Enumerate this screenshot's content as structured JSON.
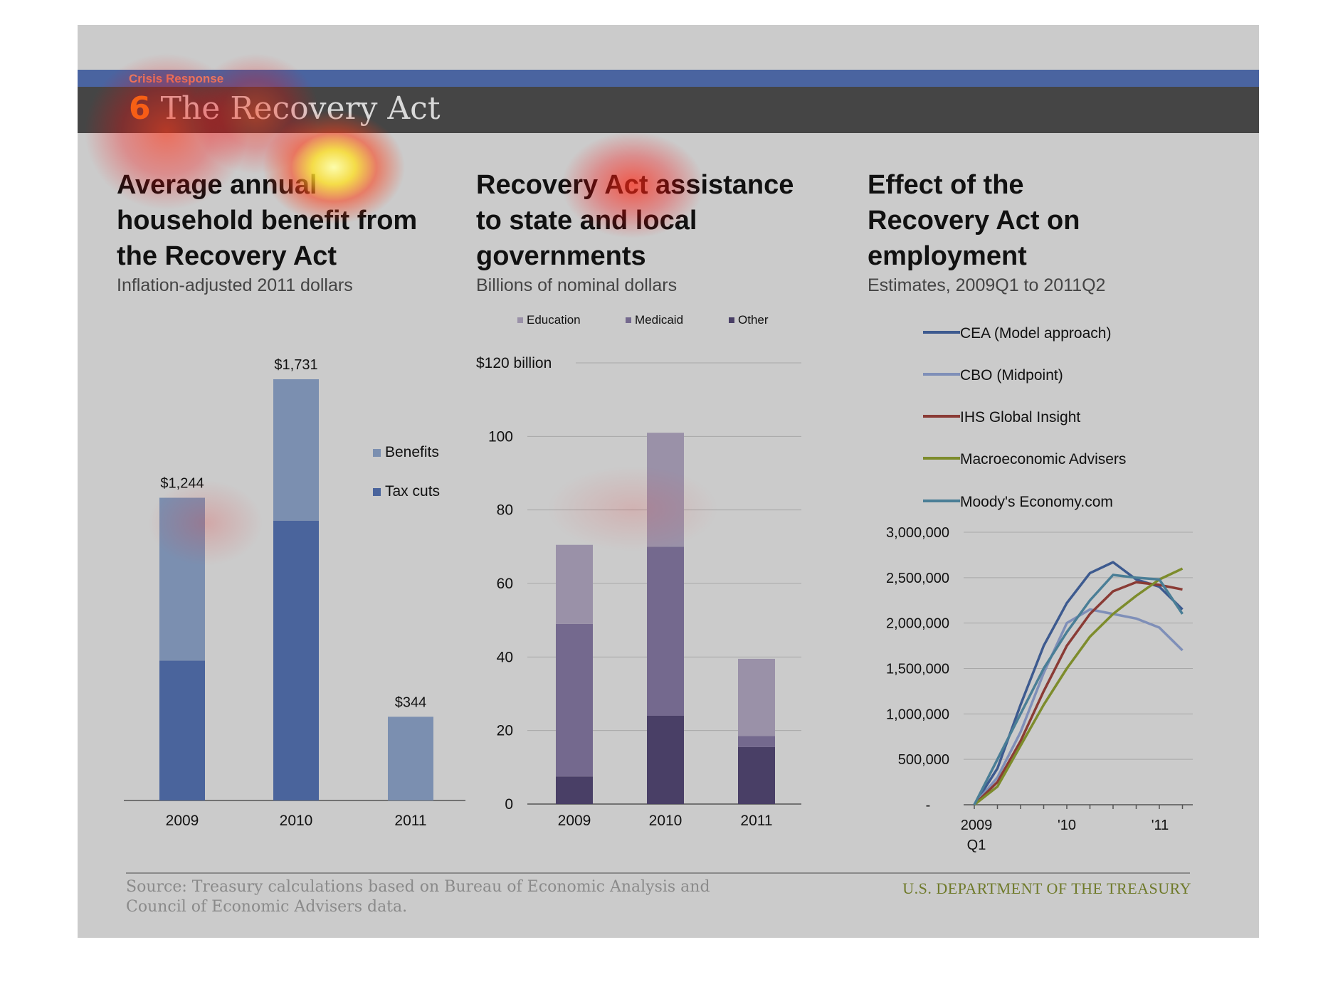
{
  "header": {
    "section": "Crisis Response",
    "number": "6",
    "title": "The Recovery Act"
  },
  "colors": {
    "topbar": "#4a64a0",
    "titlebar": "#454545",
    "benefits": "#7b8fb0",
    "tax_cuts": "#4a649c",
    "education": "#9a91a8",
    "medicaid": "#74698e",
    "other": "#493f66",
    "cea": "#3d5a8f",
    "cbo": "#7f8fb8",
    "ihs": "#8a3b35",
    "macro": "#7d8c2c",
    "moodys": "#4a7e96"
  },
  "panels": [
    {
      "title": "Average annual household benefit from the Recovery Act",
      "subtitle": "Inflation-adjusted 2011 dollars"
    },
    {
      "title": "Recovery Act assistance to state and local governments",
      "subtitle": "Billions of nominal dollars"
    },
    {
      "title": "Effect of the Recovery Act on employment",
      "subtitle": "Estimates, 2009Q1 to 2011Q2"
    }
  ],
  "chart_data": [
    {
      "type": "bar",
      "stacked": true,
      "title": "Average annual household benefit from the Recovery Act",
      "subtitle": "Inflation-adjusted 2011 dollars",
      "categories": [
        "2009",
        "2010",
        "2011"
      ],
      "totals": [
        1244,
        1731,
        344
      ],
      "data_labels": [
        "$1,244",
        "$1,731",
        "$344"
      ],
      "series": [
        {
          "name": "Tax cuts",
          "values": [
            575,
            1150,
            0
          ]
        },
        {
          "name": "Benefits",
          "values": [
            669,
            581,
            344
          ]
        }
      ],
      "legend": [
        "Benefits",
        "Tax cuts"
      ],
      "legend_position": "right",
      "ylim": [
        0,
        1731
      ]
    },
    {
      "type": "bar",
      "stacked": true,
      "title": "Recovery Act assistance to state and local governments",
      "subtitle": "Billions of nominal dollars",
      "categories": [
        "2009",
        "2010",
        "2011"
      ],
      "series": [
        {
          "name": "Other",
          "values": [
            7.5,
            24,
            15.5
          ]
        },
        {
          "name": "Medicaid",
          "values": [
            41.5,
            46,
            3
          ]
        },
        {
          "name": "Education",
          "values": [
            21.5,
            31,
            21
          ]
        }
      ],
      "legend": [
        "Education",
        "Medicaid",
        "Other"
      ],
      "legend_position": "top",
      "yticks": [
        "0",
        "20",
        "40",
        "60",
        "80",
        "100",
        "$120 billion"
      ],
      "ylim": [
        0,
        120
      ],
      "grid": true
    },
    {
      "type": "line",
      "title": "Effect of the Recovery Act on employment",
      "subtitle": "Estimates, 2009Q1 to 2011Q2",
      "x": [
        "2009Q1",
        "2009Q2",
        "2009Q3",
        "2009Q4",
        "2010Q1",
        "2010Q2",
        "2010Q3",
        "2010Q4",
        "2011Q1",
        "2011Q2"
      ],
      "xtick_labels": [
        "2009",
        "Q1",
        "'10",
        "'11"
      ],
      "series": [
        {
          "name": "CEA (Model approach)",
          "values": [
            0,
            400000,
            1100000,
            1750000,
            2220000,
            2550000,
            2670000,
            2480000,
            2400000,
            2150000
          ]
        },
        {
          "name": "CBO (Midpoint)",
          "values": [
            0,
            300000,
            800000,
            1450000,
            2000000,
            2150000,
            2100000,
            2050000,
            1950000,
            1700000
          ]
        },
        {
          "name": "IHS Global Insight",
          "values": [
            0,
            250000,
            700000,
            1250000,
            1750000,
            2100000,
            2350000,
            2450000,
            2420000,
            2370000
          ]
        },
        {
          "name": "Macroeconomic Advisers",
          "values": [
            0,
            200000,
            650000,
            1100000,
            1500000,
            1850000,
            2100000,
            2300000,
            2480000,
            2600000
          ]
        },
        {
          "name": "Moody's Economy.com",
          "values": [
            0,
            500000,
            1000000,
            1500000,
            1900000,
            2250000,
            2530000,
            2500000,
            2480000,
            2100000
          ]
        }
      ],
      "yticks": [
        "-",
        "500,000",
        "1,000,000",
        "1,500,000",
        "2,000,000",
        "2,500,000",
        "3,000,000"
      ],
      "ylim": [
        0,
        3000000
      ],
      "legend_position": "top",
      "grid": true
    }
  ],
  "footer": {
    "source": "Source: Treasury calculations based on Bureau of Economic Analysis and Council of Economic Advisers data.",
    "brand": "U.S. DEPARTMENT OF THE TREASURY"
  }
}
